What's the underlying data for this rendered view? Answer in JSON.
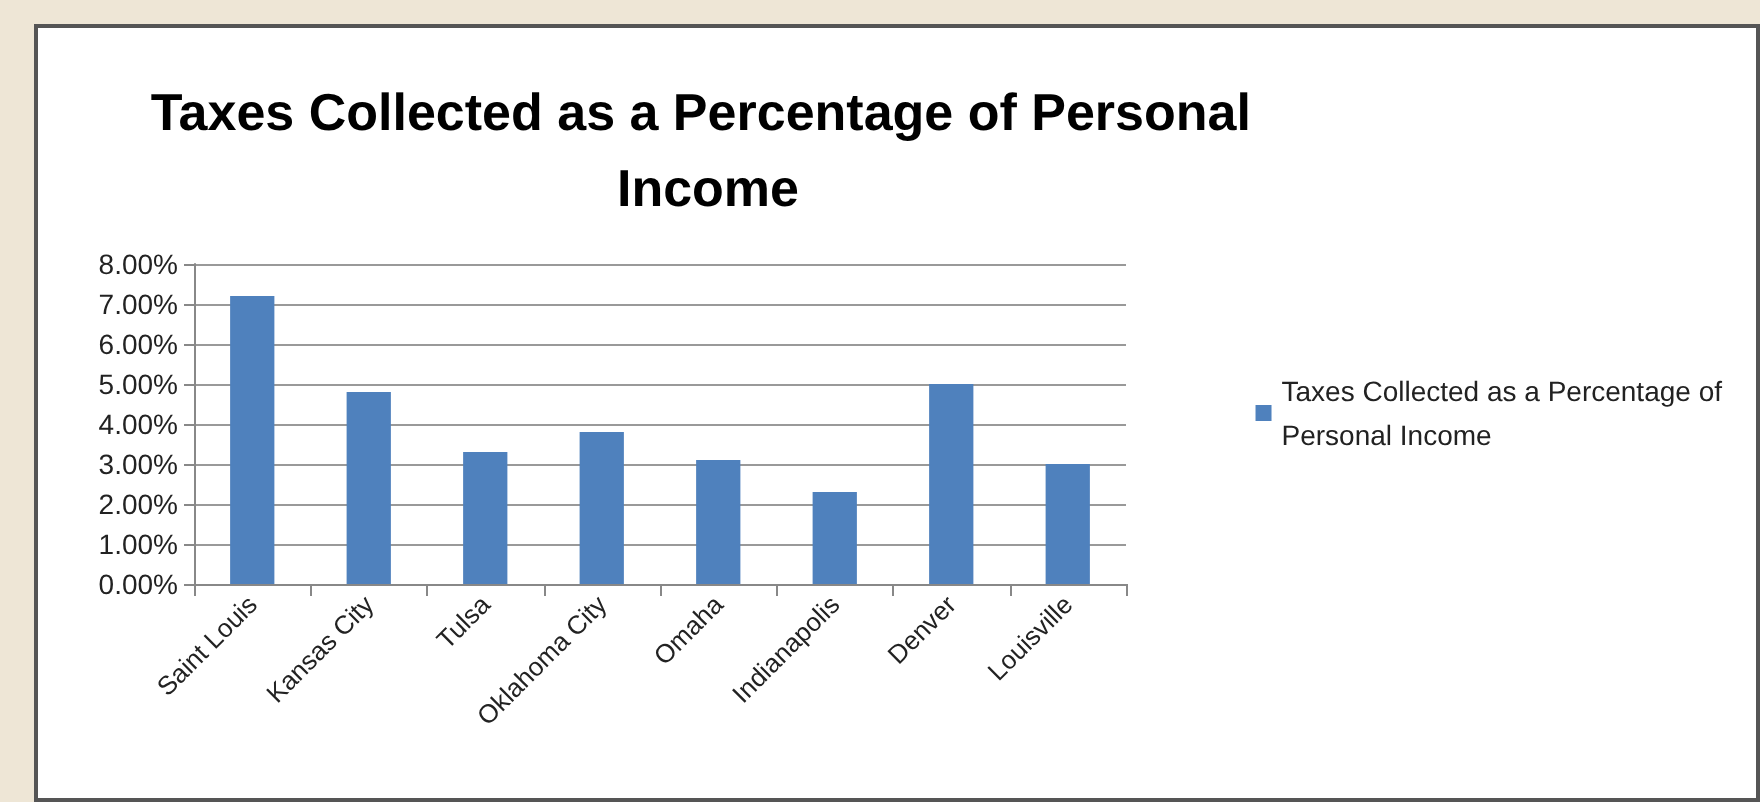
{
  "chart_data": {
    "type": "bar",
    "title": "Taxes Collected as a Percentage of Personal Income",
    "categories": [
      "Saint Louis",
      "Kansas City",
      "Tulsa",
      "Oklahoma City",
      "Omaha",
      "Indianapolis",
      "Denver",
      "Louisville"
    ],
    "series": [
      {
        "name": "Taxes Collected as a Percentage of Personal Income",
        "color": "#4f81bd",
        "values": [
          7.2,
          4.8,
          3.3,
          3.8,
          3.1,
          2.3,
          5.0,
          3.0
        ]
      }
    ],
    "ylim": [
      0,
      8
    ],
    "yticks": [
      {
        "value": 0,
        "label": "0.00%"
      },
      {
        "value": 1,
        "label": "1.00%"
      },
      {
        "value": 2,
        "label": "2.00%"
      },
      {
        "value": 3,
        "label": "3.00%"
      },
      {
        "value": 4,
        "label": "4.00%"
      },
      {
        "value": 5,
        "label": "5.00%"
      },
      {
        "value": 6,
        "label": "6.00%"
      },
      {
        "value": 7,
        "label": "7.00%"
      },
      {
        "value": 8,
        "label": "8.00%"
      }
    ],
    "grid": "y",
    "legend": "right"
  }
}
